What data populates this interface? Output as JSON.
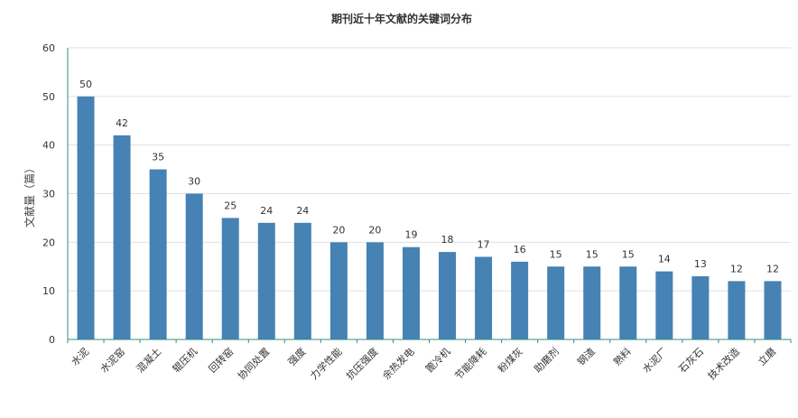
{
  "chart_data": {
    "type": "bar",
    "title": "期刊近十年文献的关键词分布",
    "xlabel": "",
    "ylabel": "文献量（篇）",
    "ylim": [
      0,
      60
    ],
    "yticks": [
      0,
      10,
      20,
      30,
      40,
      50,
      60
    ],
    "grid": true,
    "legend": "none",
    "categories": [
      "水泥",
      "水泥窑",
      "混凝土",
      "辊压机",
      "回转窑",
      "协同处置",
      "强度",
      "力学性能",
      "抗压强度",
      "余热发电",
      "篦冷机",
      "节能降耗",
      "粉煤灰",
      "助磨剂",
      "钢渣",
      "熟料",
      "水泥厂",
      "石灰石",
      "技术改造",
      "立磨"
    ],
    "values": [
      50,
      42,
      35,
      30,
      25,
      24,
      24,
      20,
      20,
      19,
      18,
      17,
      16,
      15,
      15,
      15,
      14,
      13,
      12,
      12
    ],
    "bar_color": "#4682b4",
    "axis_color": "#2f8f83"
  }
}
